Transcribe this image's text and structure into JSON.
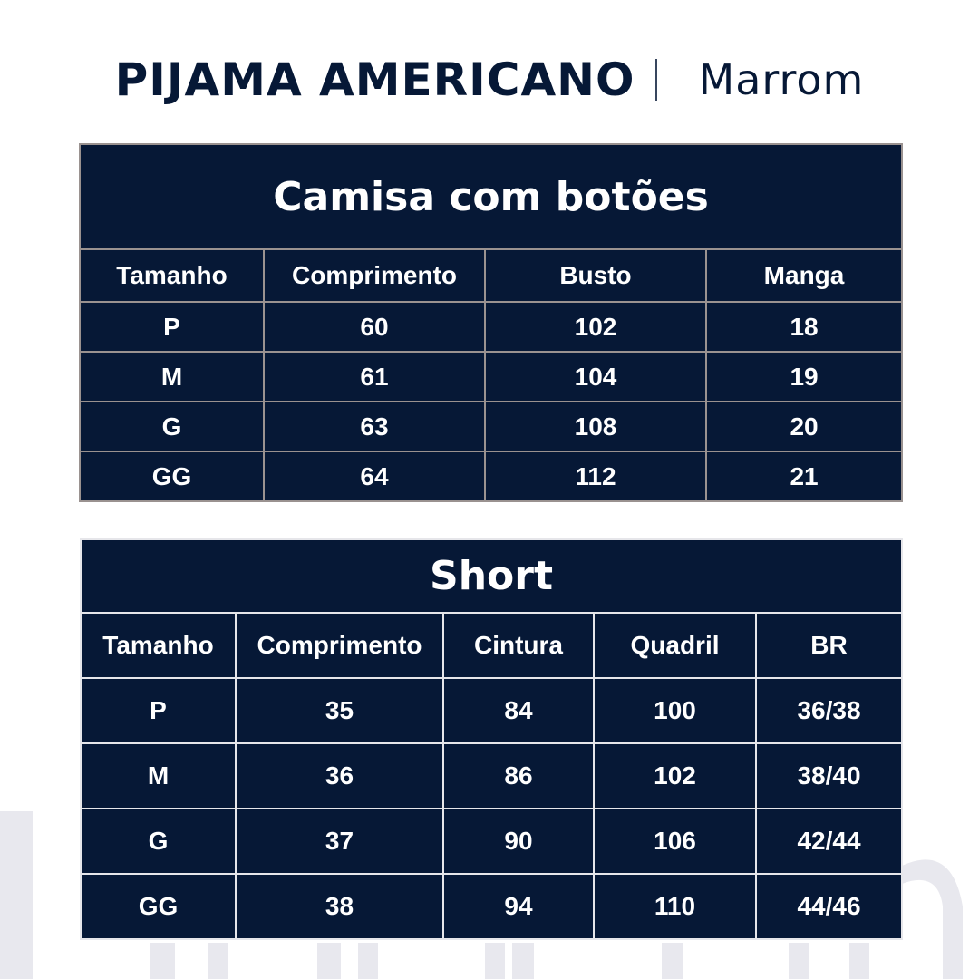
{
  "header": {
    "title": "PIJAMA AMERICANO",
    "subtitle": "Marrom"
  },
  "shirt_table": {
    "title": "Camisa com botões",
    "columns": [
      "Tamanho",
      "Comprimento",
      "Busto",
      "Manga"
    ],
    "rows": [
      [
        "P",
        "60",
        "102",
        "18"
      ],
      [
        "M",
        "61",
        "104",
        "19"
      ],
      [
        "G",
        "63",
        "108",
        "20"
      ],
      [
        "GG",
        "64",
        "112",
        "21"
      ]
    ]
  },
  "short_table": {
    "title": "Short",
    "columns": [
      "Tamanho",
      "Comprimento",
      "Cintura",
      "Quadril",
      "BR"
    ],
    "rows": [
      [
        "P",
        "35",
        "84",
        "100",
        "36/38"
      ],
      [
        "M",
        "36",
        "86",
        "102",
        "38/40"
      ],
      [
        "G",
        "37",
        "90",
        "106",
        "42/44"
      ],
      [
        "GG",
        "38",
        "94",
        "110",
        "44/46"
      ]
    ]
  },
  "colors": {
    "navy": "#061836",
    "watermark": "#e8e8ee"
  }
}
